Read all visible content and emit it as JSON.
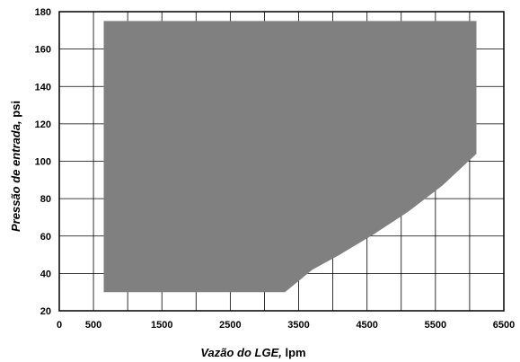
{
  "chart_data": {
    "type": "area",
    "xlabel_italic": "Vazão do LGE,",
    "xlabel_unit": " lpm",
    "ylabel_italic": "Pressão de entrada,",
    "ylabel_unit": " psi",
    "xlim": [
      0,
      6500
    ],
    "ylim": [
      20,
      180
    ],
    "x_ticks": [
      0,
      500,
      1500,
      2500,
      3500,
      4500,
      5500,
      6500
    ],
    "y_ticks": [
      20,
      40,
      60,
      80,
      100,
      120,
      140,
      160,
      180
    ],
    "x_gridlines": [
      0,
      500,
      1000,
      1500,
      2000,
      2500,
      3000,
      3500,
      4000,
      4500,
      5000,
      5500,
      6000,
      6500
    ],
    "y_gridlines": [
      20,
      40,
      60,
      80,
      100,
      120,
      140,
      160,
      180
    ],
    "grid": true,
    "region_color": "#808080",
    "region": [
      {
        "x": 650,
        "y": 175
      },
      {
        "x": 6100,
        "y": 175
      },
      {
        "x": 6100,
        "y": 104
      },
      {
        "x": 5600,
        "y": 87
      },
      {
        "x": 5100,
        "y": 73
      },
      {
        "x": 4600,
        "y": 61
      },
      {
        "x": 4100,
        "y": 50
      },
      {
        "x": 3700,
        "y": 42
      },
      {
        "x": 3300,
        "y": 30
      },
      {
        "x": 650,
        "y": 30
      }
    ]
  }
}
